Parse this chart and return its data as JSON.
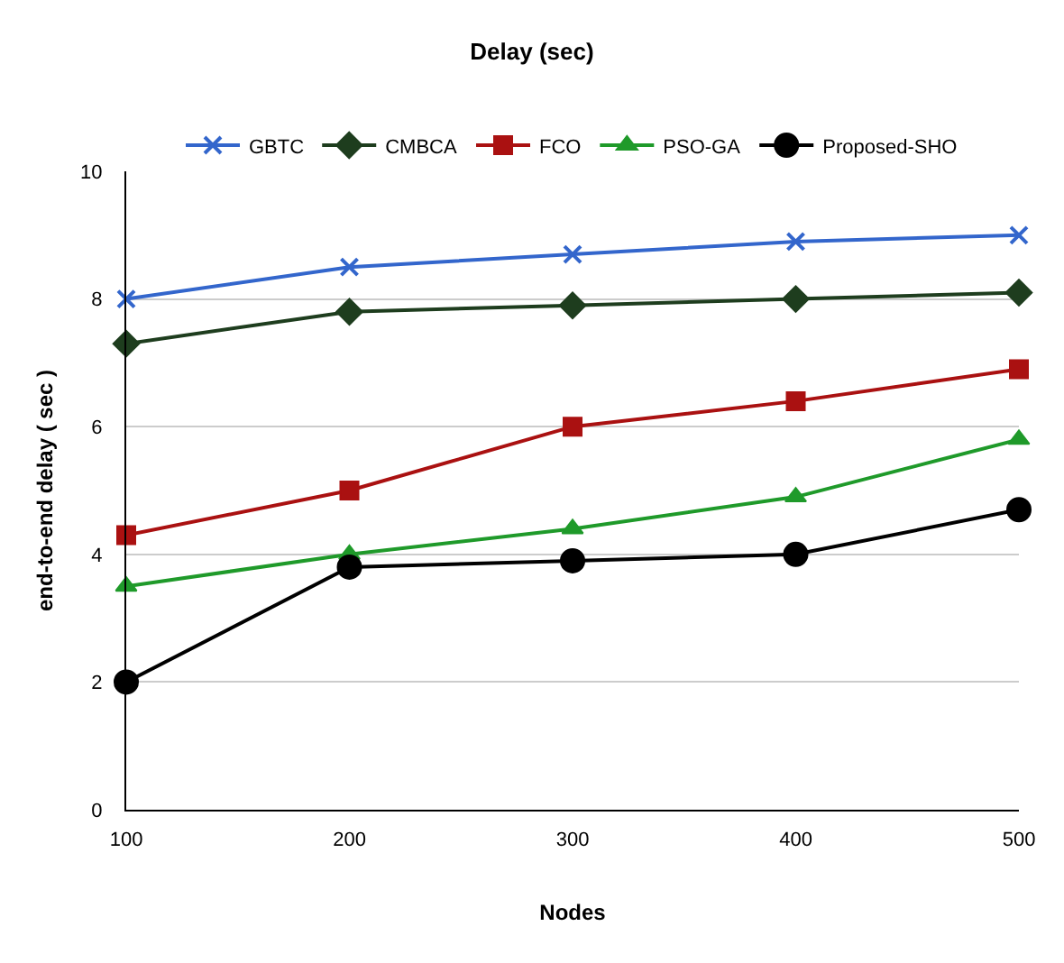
{
  "chart_data": {
    "type": "line",
    "title": "Delay (sec)",
    "xlabel": "Nodes",
    "ylabel": "end-to-end delay ( sec )",
    "x": [
      100,
      200,
      300,
      400,
      500
    ],
    "series": [
      {
        "name": "GBTC",
        "color": "#3366cc",
        "marker": "cross",
        "values": [
          8.0,
          8.5,
          8.7,
          8.9,
          9.0
        ]
      },
      {
        "name": "CMBCA",
        "color": "#1e3d1e",
        "marker": "diamond",
        "values": [
          7.3,
          7.8,
          7.9,
          8.0,
          8.1
        ]
      },
      {
        "name": "FCO",
        "color": "#aa1111",
        "marker": "square",
        "values": [
          4.3,
          5.0,
          6.0,
          6.4,
          6.9
        ]
      },
      {
        "name": "PSO-GA",
        "color": "#1f9a2a",
        "marker": "triangle",
        "values": [
          3.5,
          4.0,
          4.4,
          4.9,
          5.8
        ]
      },
      {
        "name": "Proposed-SHO",
        "color": "#000000",
        "marker": "circle",
        "values": [
          2.0,
          3.8,
          3.9,
          4.0,
          4.7
        ]
      }
    ],
    "xlim": [
      100,
      500
    ],
    "xticks": [
      100,
      200,
      300,
      400,
      500
    ],
    "ylim": [
      0,
      10
    ],
    "yticks": [
      0,
      2,
      4,
      6,
      8,
      10
    ],
    "grid": "y",
    "legend": "top"
  }
}
